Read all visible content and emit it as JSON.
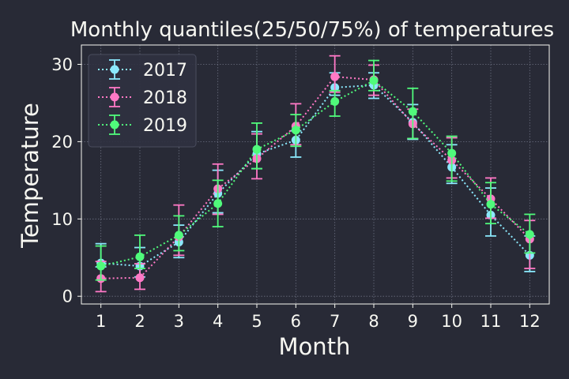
{
  "colors": {
    "background": "#282a36",
    "foreground": "#f8f8f2",
    "grid": "#6b6f80",
    "legend_bg": "#2f3140",
    "legend_border": "#4a4d5e"
  },
  "chart_data": {
    "type": "line",
    "title": "Monthly quantiles(25/50/75%) of temperatures",
    "xlabel": "Month",
    "ylabel": "Temperature",
    "categories": [
      1,
      2,
      3,
      4,
      5,
      6,
      7,
      8,
      9,
      10,
      11,
      12
    ],
    "xlim": [
      0.5,
      12.5
    ],
    "ylim": [
      -1,
      32.5
    ],
    "yticks": [
      0,
      10,
      20,
      30
    ],
    "grid": true,
    "line_style": "dotted",
    "marker": "circle",
    "error_bars": "25% and 75% quantiles",
    "legend_position": "top-left",
    "series": [
      {
        "name": "2017",
        "color": "#8be9fd",
        "median": [
          4.3,
          3.9,
          7.0,
          13.3,
          18.4,
          20.2,
          27.0,
          27.3,
          22.5,
          16.7,
          10.5,
          5.3
        ],
        "q25": [
          3.8,
          2.5,
          5.0,
          10.8,
          16.5,
          18.0,
          26.0,
          25.6,
          20.3,
          14.6,
          7.8,
          3.2
        ],
        "q75": [
          6.8,
          6.3,
          9.2,
          16.3,
          21.3,
          21.4,
          28.9,
          28.9,
          24.8,
          19.6,
          14.0,
          7.8
        ]
      },
      {
        "name": "2018",
        "color": "#ff79c6",
        "median": [
          2.3,
          2.4,
          7.7,
          13.9,
          17.8,
          22.0,
          28.4,
          28.0,
          22.3,
          17.6,
          12.6,
          7.4
        ],
        "q25": [
          0.6,
          0.9,
          5.3,
          10.6,
          15.2,
          19.6,
          26.4,
          26.0,
          20.4,
          15.3,
          10.1,
          3.6
        ],
        "q75": [
          4.5,
          4.2,
          11.8,
          17.1,
          21.0,
          24.9,
          31.1,
          29.9,
          24.2,
          20.5,
          15.3,
          9.8
        ]
      },
      {
        "name": "2019",
        "color": "#50fa7b",
        "median": [
          3.9,
          5.1,
          7.9,
          12.0,
          19.0,
          21.5,
          25.2,
          27.9,
          23.9,
          18.5,
          11.9,
          8.0
        ],
        "q25": [
          2.1,
          3.6,
          5.9,
          9.0,
          16.5,
          19.4,
          23.3,
          26.6,
          20.4,
          14.9,
          9.4,
          5.6
        ],
        "q75": [
          6.5,
          7.9,
          10.4,
          15.0,
          22.4,
          23.5,
          26.6,
          30.5,
          26.9,
          20.7,
          14.7,
          10.6
        ]
      }
    ]
  }
}
